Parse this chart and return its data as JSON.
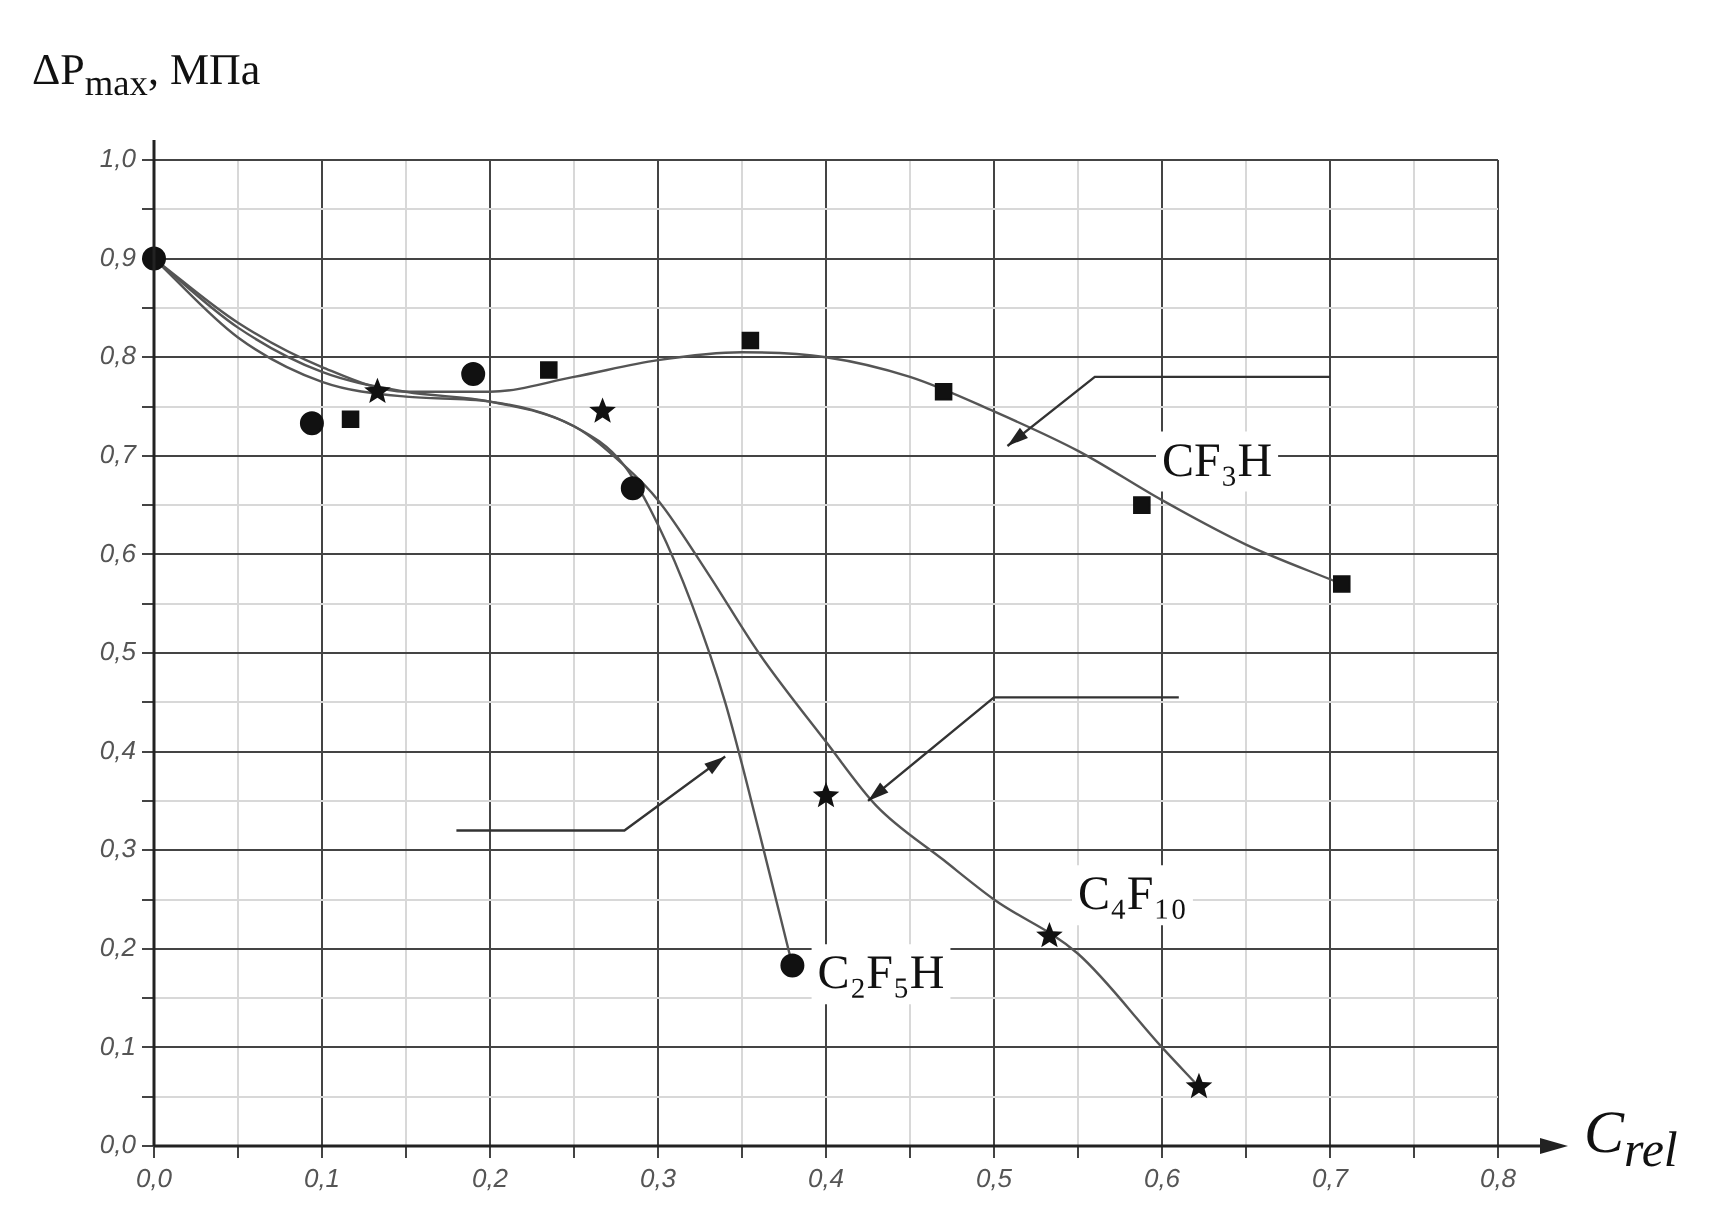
{
  "chart_data": {
    "type": "scatter",
    "xlabel": "C$_{rel}$",
    "ylabel": "ΔP$_{max}$, МПа",
    "xlim": [
      0,
      0.8
    ],
    "ylim": [
      0,
      1.0
    ],
    "xticks": [
      {
        "value": 0,
        "label": "0,0"
      },
      {
        "value": 0.05,
        "label": null
      },
      {
        "value": 0.1,
        "label": "0,1"
      },
      {
        "value": 0.15,
        "label": null
      },
      {
        "value": 0.2,
        "label": "0,2"
      },
      {
        "value": 0.25,
        "label": null
      },
      {
        "value": 0.3,
        "label": "0,3"
      },
      {
        "value": 0.35,
        "label": null
      },
      {
        "value": 0.4,
        "label": "0,4"
      },
      {
        "value": 0.45,
        "label": null
      },
      {
        "value": 0.5,
        "label": "0,5"
      },
      {
        "value": 0.55,
        "label": null
      },
      {
        "value": 0.6,
        "label": "0,6"
      },
      {
        "value": 0.65,
        "label": null
      },
      {
        "value": 0.7,
        "label": "0,7"
      },
      {
        "value": 0.75,
        "label": null
      },
      {
        "value": 0.8,
        "label": "0,8"
      }
    ],
    "yticks": [
      {
        "value": 0,
        "label": "0,0"
      },
      {
        "value": 0.05,
        "label": null
      },
      {
        "value": 0.1,
        "label": "0,1"
      },
      {
        "value": 0.15,
        "label": null
      },
      {
        "value": 0.2,
        "label": "0,2"
      },
      {
        "value": 0.25,
        "label": null
      },
      {
        "value": 0.3,
        "label": "0,3"
      },
      {
        "value": 0.35,
        "label": null
      },
      {
        "value": 0.4,
        "label": "0,4"
      },
      {
        "value": 0.45,
        "label": null
      },
      {
        "value": 0.5,
        "label": "0,5"
      },
      {
        "value": 0.55,
        "label": null
      },
      {
        "value": 0.6,
        "label": "0,6"
      },
      {
        "value": 0.65,
        "label": null
      },
      {
        "value": 0.7,
        "label": "0,7"
      },
      {
        "value": 0.75,
        "label": null
      },
      {
        "value": 0.8,
        "label": "0,8"
      },
      {
        "value": 0.85,
        "label": null
      },
      {
        "value": 0.9,
        "label": "0,9"
      },
      {
        "value": 0.95,
        "label": null
      },
      {
        "value": 1.0,
        "label": "1,0"
      }
    ],
    "grid": true,
    "legend": false,
    "series": [
      {
        "name": "CF₃H",
        "type": "scatter",
        "marker": "square",
        "color": "#111111",
        "x": [
          0.117,
          0.235,
          0.355,
          0.47,
          0.588,
          0.707
        ],
        "values": [
          0.737,
          0.787,
          0.817,
          0.765,
          0.65,
          0.57
        ]
      },
      {
        "type": "line",
        "marker": "none",
        "color": "#555555",
        "x": [
          0,
          0.05,
          0.1,
          0.15,
          0.2,
          0.25,
          0.3,
          0.35,
          0.4,
          0.45,
          0.5,
          0.55,
          0.6,
          0.65,
          0.707
        ],
        "values": [
          0.9,
          0.835,
          0.79,
          0.765,
          0.765,
          0.78,
          0.797,
          0.805,
          0.8,
          0.78,
          0.745,
          0.705,
          0.655,
          0.61,
          0.57
        ]
      },
      {
        "name": "C₄F₁₀",
        "type": "scatter",
        "marker": "star",
        "color": "#111111",
        "x": [
          0.133,
          0.267,
          0.4,
          0.533,
          0.622
        ],
        "values": [
          0.765,
          0.745,
          0.355,
          0.213,
          0.06
        ]
      },
      {
        "type": "line",
        "marker": "none",
        "color": "#555555",
        "x": [
          0,
          0.05,
          0.1,
          0.15,
          0.2,
          0.25,
          0.28,
          0.3,
          0.33,
          0.36,
          0.4,
          0.43,
          0.47,
          0.5,
          0.55,
          0.6,
          0.622
        ],
        "values": [
          0.9,
          0.83,
          0.785,
          0.765,
          0.755,
          0.73,
          0.69,
          0.655,
          0.58,
          0.5,
          0.41,
          0.345,
          0.29,
          0.25,
          0.195,
          0.1,
          0.06
        ]
      },
      {
        "name": "C₂F₅H",
        "type": "scatter",
        "marker": "circle",
        "color": "#111111",
        "x": [
          0,
          0.094,
          0.19,
          0.285,
          0.38
        ],
        "values": [
          0.9,
          0.733,
          0.783,
          0.667,
          0.183
        ]
      },
      {
        "type": "line",
        "marker": "none",
        "color": "#555555",
        "x": [
          0,
          0.05,
          0.1,
          0.15,
          0.2,
          0.25,
          0.28,
          0.3,
          0.32,
          0.34,
          0.36,
          0.38
        ],
        "values": [
          0.9,
          0.82,
          0.775,
          0.76,
          0.755,
          0.73,
          0.69,
          0.63,
          0.55,
          0.45,
          0.32,
          0.183
        ]
      }
    ]
  }
}
